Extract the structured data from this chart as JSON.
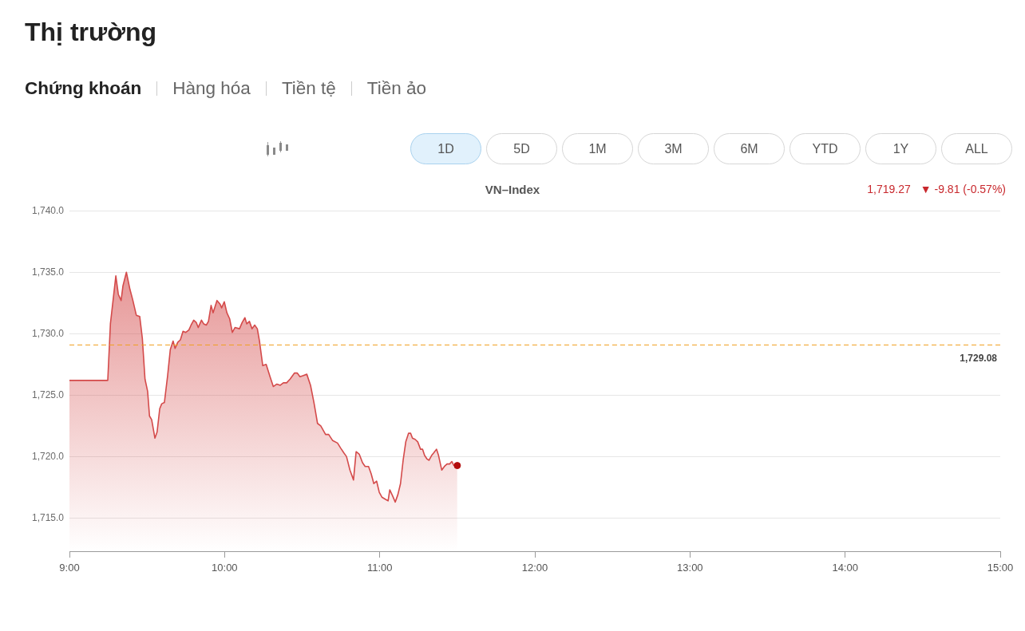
{
  "chart_data": {
    "type": "area",
    "title": "VN–Index",
    "annotations": [
      "Thị trường",
      "Chứng khoán",
      "Hàng hóa",
      "Tiền tệ",
      "Tiền ảo",
      "1D",
      "5D",
      "1M",
      "3M",
      "6M",
      "YTD",
      "1Y",
      "ALL",
      "1,719.27",
      "▼ -9.81 (-0.57%)"
    ],
    "series": [
      {
        "color": "#d44a4a",
        "x": [
          9.0,
          9.247,
          9.264,
          9.299,
          9.315,
          9.333,
          9.345,
          9.367,
          9.39,
          9.407,
          9.431,
          9.453,
          9.47,
          9.487,
          9.504,
          9.516,
          9.53,
          9.551,
          9.565,
          9.582,
          9.595,
          9.612,
          9.633,
          9.65,
          9.668,
          9.681,
          9.698,
          9.715,
          9.732,
          9.75,
          9.77,
          9.784,
          9.801,
          9.818,
          9.83,
          9.851,
          9.865,
          9.882,
          9.896,
          9.913,
          9.926,
          9.951,
          9.971,
          9.981,
          9.998,
          10.015,
          10.033,
          10.05,
          10.067,
          10.096,
          10.113,
          10.131,
          10.143,
          10.16,
          10.177,
          10.194,
          10.211,
          10.225,
          10.246,
          10.268,
          10.293,
          10.314,
          10.337,
          10.359,
          10.379,
          10.4,
          10.422,
          10.451,
          10.468,
          10.486,
          10.508,
          10.53,
          10.554,
          10.576,
          10.599,
          10.62,
          10.651,
          10.671,
          10.697,
          10.728,
          10.748,
          10.769,
          10.786,
          10.808,
          10.831,
          10.848,
          10.868,
          10.889,
          10.906,
          10.928,
          10.945,
          10.962,
          10.98,
          10.997,
          11.014,
          11.04,
          11.054,
          11.065,
          11.083,
          11.1,
          11.117,
          11.134,
          11.151,
          11.168,
          11.186,
          11.199,
          11.211,
          11.228,
          11.245,
          11.263,
          11.276,
          11.289,
          11.305,
          11.318,
          11.335,
          11.348,
          11.366,
          11.379,
          11.4,
          11.417,
          11.434,
          11.451,
          11.465,
          11.477,
          11.5
        ],
        "values": [
          1726.2,
          1726.2,
          1730.8,
          1734.7,
          1733.2,
          1732.7,
          1733.9,
          1735.0,
          1733.6,
          1732.8,
          1731.5,
          1731.4,
          1729.6,
          1726.3,
          1725.3,
          1723.3,
          1723.0,
          1721.5,
          1722.0,
          1723.9,
          1724.3,
          1724.4,
          1726.6,
          1728.7,
          1729.4,
          1728.8,
          1729.3,
          1729.5,
          1730.2,
          1730.1,
          1730.3,
          1730.7,
          1731.1,
          1730.9,
          1730.5,
          1731.1,
          1730.8,
          1730.7,
          1731.0,
          1732.3,
          1731.7,
          1732.7,
          1732.4,
          1732.1,
          1732.6,
          1731.7,
          1731.2,
          1730.1,
          1730.5,
          1730.4,
          1730.9,
          1731.3,
          1730.8,
          1731.0,
          1730.4,
          1730.7,
          1730.4,
          1729.4,
          1727.4,
          1727.5,
          1726.5,
          1725.7,
          1725.9,
          1725.8,
          1726.0,
          1726.0,
          1726.3,
          1726.8,
          1726.8,
          1726.5,
          1726.6,
          1726.7,
          1725.8,
          1724.4,
          1722.7,
          1722.5,
          1721.8,
          1721.8,
          1721.3,
          1721.1,
          1720.7,
          1720.3,
          1720.0,
          1718.9,
          1718.1,
          1720.4,
          1720.2,
          1719.5,
          1719.2,
          1719.2,
          1718.6,
          1717.8,
          1718.0,
          1717.1,
          1716.7,
          1716.5,
          1716.4,
          1717.3,
          1716.8,
          1716.3,
          1716.9,
          1717.8,
          1719.7,
          1721.2,
          1721.9,
          1721.9,
          1721.5,
          1721.4,
          1721.2,
          1720.6,
          1720.6,
          1720.1,
          1719.8,
          1719.7,
          1720.1,
          1720.3,
          1720.6,
          1720.1,
          1718.9,
          1719.2,
          1719.4,
          1719.4,
          1719.6,
          1719.3,
          1719.27
        ]
      },
      {
        "type": "scatter",
        "color": "#b30d0d",
        "marker": "circle",
        "x": [
          11.5
        ],
        "values": [
          1719.27
        ]
      }
    ],
    "xlim": [
      9,
      15
    ],
    "xticks": [
      {
        "value": 9,
        "label": "9:00"
      },
      {
        "value": 10,
        "label": "10:00"
      },
      {
        "value": 11,
        "label": "11:00"
      },
      {
        "value": 12,
        "label": "12:00"
      },
      {
        "value": 13,
        "label": "13:00"
      },
      {
        "value": 14,
        "label": "14:00"
      },
      {
        "value": 15,
        "label": "15:00"
      }
    ],
    "ylim": [
      1712.3,
      1740
    ],
    "yticks": [
      {
        "value": 1715,
        "label": "1,715.0"
      },
      {
        "value": 1720,
        "label": "1,720.0"
      },
      {
        "value": 1725,
        "label": "1,725.0"
      },
      {
        "value": 1730,
        "label": "1,730.0"
      },
      {
        "value": 1735,
        "label": "1,735.0"
      },
      {
        "value": 1740,
        "label": "1,740.0"
      }
    ],
    "ref_lines": [
      {
        "axis": "y",
        "value": 1729.08,
        "label": "1,729.08",
        "color": "#f0a020",
        "line_style": "dashed"
      }
    ],
    "grid": "y"
  }
}
